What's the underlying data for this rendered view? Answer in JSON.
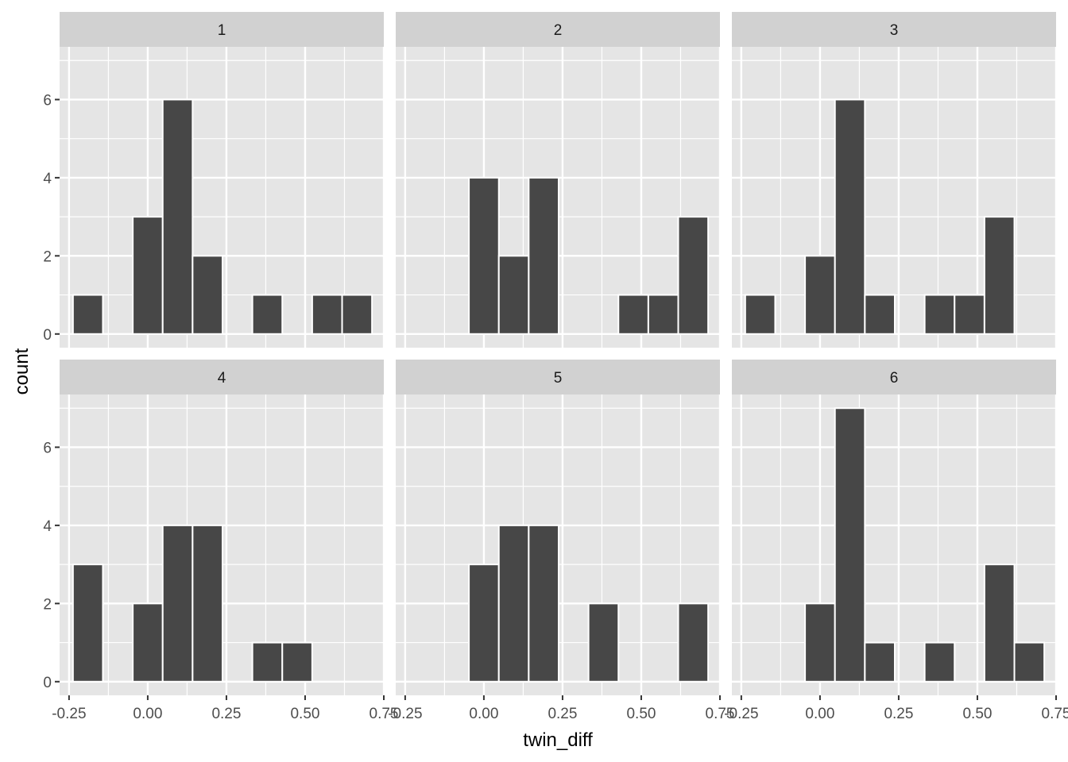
{
  "chart_data": {
    "type": "bar",
    "subtype": "faceted-histogram",
    "xlabel": "twin_diff",
    "ylabel": "count",
    "xlim": [
      -0.28,
      0.75
    ],
    "ylim": [
      -0.35,
      7.35
    ],
    "x_ticks": [
      -0.25,
      0.0,
      0.25,
      0.5,
      0.75
    ],
    "x_tick_labels": [
      "-0.25",
      "0.00",
      "0.25",
      "0.50",
      "0.75"
    ],
    "y_ticks": [
      0,
      2,
      4,
      6
    ],
    "y_tick_labels": [
      "0",
      "2",
      "4",
      "6"
    ],
    "bin_width": 0.095,
    "bin_centers": [
      -0.19,
      -0.095,
      0.0,
      0.095,
      0.19,
      0.285,
      0.38,
      0.475,
      0.57,
      0.665
    ],
    "grid": true,
    "facet_layout": "2 rows x 3 columns",
    "colors": {
      "bar_fill": "#474747",
      "bar_outline": "#ffffff",
      "panel_bg": "#e5e5e5",
      "strip_bg": "#d1d1d1",
      "grid": "#ffffff"
    },
    "facets": [
      {
        "label": "1",
        "counts": [
          1,
          0,
          3,
          6,
          2,
          0,
          1,
          0,
          1,
          1
        ]
      },
      {
        "label": "2",
        "counts": [
          0,
          0,
          4,
          2,
          4,
          0,
          0,
          1,
          1,
          3
        ]
      },
      {
        "label": "3",
        "counts": [
          1,
          0,
          2,
          6,
          1,
          0,
          1,
          1,
          3,
          0
        ]
      },
      {
        "label": "4",
        "counts": [
          3,
          0,
          2,
          4,
          4,
          0,
          1,
          1,
          0,
          0
        ]
      },
      {
        "label": "5",
        "counts": [
          0,
          0,
          3,
          4,
          4,
          0,
          2,
          0,
          0,
          2
        ]
      },
      {
        "label": "6",
        "counts": [
          0,
          0,
          2,
          7,
          1,
          0,
          1,
          0,
          3,
          1
        ]
      }
    ]
  }
}
